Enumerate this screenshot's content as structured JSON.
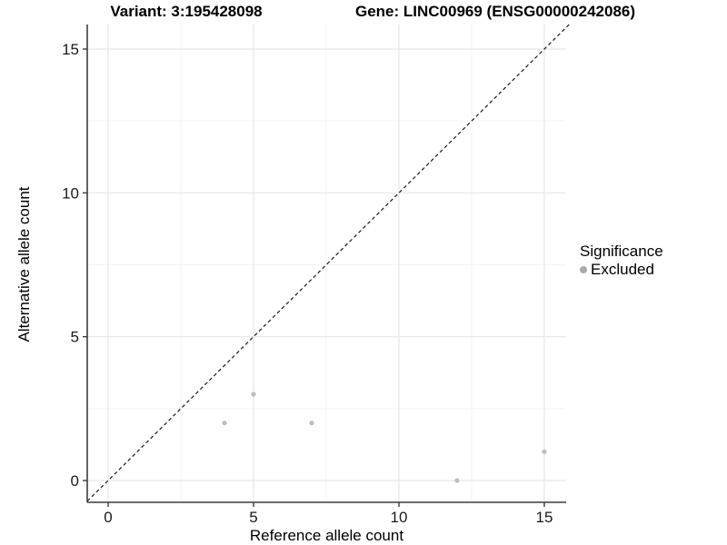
{
  "header": {
    "left_title": "Variant: 3:195428098",
    "right_title": "Gene: LINC00969 (ENSG00000242086)"
  },
  "legend": {
    "title": "Significance",
    "items": [
      {
        "label": "Excluded",
        "color": "#a9a9a9"
      }
    ]
  },
  "colors": {
    "grid_major": "#e6e6e6",
    "grid_minor": "#f3f3f3",
    "axis_line": "#3c3c3c",
    "tick_mark": "#3c3c3c",
    "tick_text": "#1a1a1a",
    "identity_line": "#1a1a1a",
    "point": "#bebebe"
  },
  "chart_data": {
    "type": "scatter",
    "title": "Variant: 3:195428098",
    "subtitle": "Gene: LINC00969 (ENSG00000242086)",
    "xlabel": "Reference allele count",
    "ylabel": "Alternative allele count",
    "xlim": [
      -0.75,
      15.85
    ],
    "ylim": [
      -0.76,
      15.85
    ],
    "x_ticks": [
      0,
      5,
      10,
      15
    ],
    "y_ticks": [
      0,
      5,
      10,
      15
    ],
    "x_minor_ticks": [
      2.5,
      7.5,
      12.5
    ],
    "y_minor_ticks": [
      2.5,
      7.5,
      12.5
    ],
    "grid": true,
    "legend_position": "right",
    "reference_line": {
      "kind": "identity y=x",
      "style": "dashed",
      "color": "#1a1a1a"
    },
    "series": [
      {
        "name": "Excluded",
        "color": "#bebebe",
        "points": [
          {
            "x": 4,
            "y": 2
          },
          {
            "x": 5,
            "y": 3
          },
          {
            "x": 7,
            "y": 2
          },
          {
            "x": 12,
            "y": 0
          },
          {
            "x": 15,
            "y": 1
          }
        ]
      }
    ]
  }
}
